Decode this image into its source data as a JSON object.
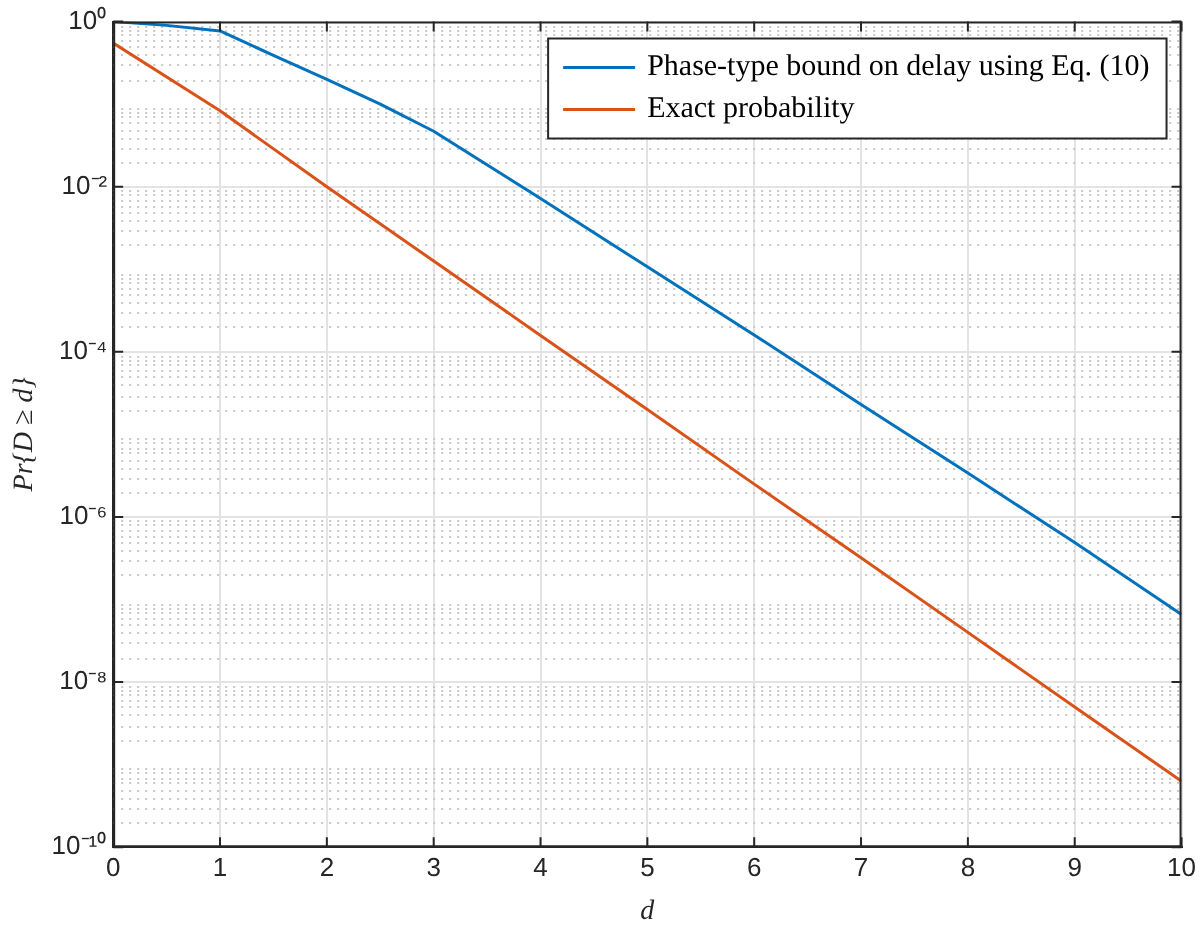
{
  "chart_data": {
    "type": "line",
    "xlabel": "d",
    "ylabel": "Pr{D ≥ d}",
    "log": "y",
    "xlim": [
      0,
      10
    ],
    "xticks": [
      0,
      1,
      2,
      3,
      4,
      5,
      6,
      7,
      8,
      9,
      10
    ],
    "ylim": [
      1e-10,
      1
    ],
    "yticks": [
      {
        "value": 1,
        "label": "10⁰"
      },
      {
        "value": 0.01,
        "label": "10⁻²"
      },
      {
        "value": 0.0001,
        "label": "10⁻⁴"
      },
      {
        "value": 1e-06,
        "label": "10⁻⁶"
      },
      {
        "value": 1e-08,
        "label": "10⁻⁸"
      },
      {
        "value": 1e-10,
        "label": "10⁻¹⁰"
      }
    ],
    "grid": true,
    "legend": "top right",
    "line_style": "solid",
    "marker": "none",
    "series": [
      {
        "name": "Phase-type bound on delay using Eq. (10)",
        "color": "#0072bd",
        "x": [
          0,
          0.5,
          1,
          1.5,
          2,
          2.5,
          3,
          4,
          5,
          6,
          7,
          8,
          9,
          10
        ],
        "values": [
          1,
          0.9,
          0.77,
          0.39,
          0.2,
          0.1,
          0.047,
          0.0072,
          0.00107,
          0.00016,
          2.3e-05,
          3.4e-06,
          4.9e-07,
          6.6e-08
        ]
      },
      {
        "name": "Exact probability",
        "color": "#d95319",
        "x": [
          0,
          1,
          2,
          3,
          4,
          5,
          6,
          7,
          8,
          9,
          10
        ],
        "values": [
          0.55,
          0.083,
          0.01,
          0.00126,
          0.000158,
          2e-05,
          2.5e-06,
          3.2e-07,
          4e-08,
          5e-09,
          6.3e-10
        ]
      }
    ]
  }
}
